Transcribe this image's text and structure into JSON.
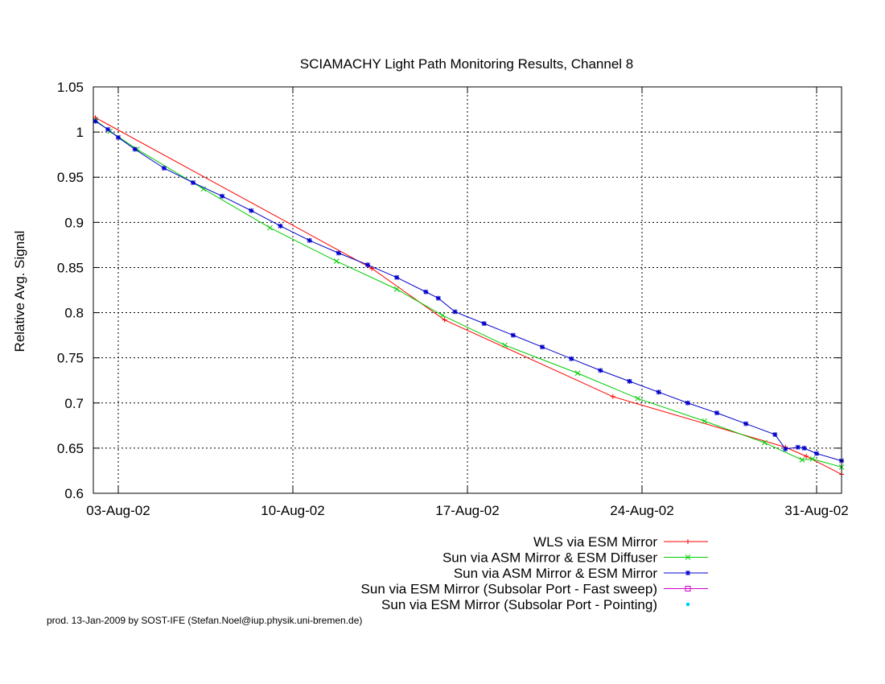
{
  "chart_data": {
    "type": "line",
    "title": "SCIAMACHY Light Path Monitoring Results, Channel 8",
    "ylabel": "Relative Avg. Signal",
    "xlabel": "",
    "x_unit": "date (2002)",
    "xlim": [
      "2002-08-02T00:00",
      "2002-09-01T00:00"
    ],
    "ylim": [
      0.6,
      1.05
    ],
    "yticks": [
      0.6,
      0.65,
      0.7,
      0.75,
      0.8,
      0.85,
      0.9,
      0.95,
      1,
      1.05
    ],
    "ytick_labels": [
      "0.6",
      "0.65",
      "0.7",
      "0.75",
      "0.8",
      "0.85",
      "0.9",
      "0.95",
      "1",
      "1.05"
    ],
    "xticks": [
      "2002-08-03",
      "2002-08-10",
      "2002-08-17",
      "2002-08-24",
      "2002-08-31"
    ],
    "xtick_labels": [
      "03-Aug-02",
      "10-Aug-02",
      "17-Aug-02",
      "24-Aug-02",
      "31-Aug-02"
    ],
    "grid": true,
    "legend_position": "bottom-right, below plot",
    "series": [
      {
        "name": "WLS via ESM Mirror",
        "color": "#ff0000",
        "marker": "plus",
        "x": [
          "2002-08-02T02:00",
          "2002-08-13T04:00",
          "2002-08-16T02:00",
          "2002-08-22T20:00",
          "2002-08-29T18:00",
          "2002-08-30T14:00",
          "2002-09-01T00:00"
        ],
        "y": [
          1.016,
          0.849,
          0.792,
          0.707,
          0.651,
          0.641,
          0.621
        ]
      },
      {
        "name": "Sun via ASM Mirror & ESM Diffuser",
        "color": "#00cc00",
        "marker": "cross",
        "x": [
          "2002-08-02T02:00",
          "2002-08-02T16:00",
          "2002-08-03T18:00",
          "2002-08-06T10:00",
          "2002-08-09T02:00",
          "2002-08-11T18:00",
          "2002-08-14T04:00",
          "2002-08-16T00:00",
          "2002-08-18T12:00",
          "2002-08-21T10:00",
          "2002-08-23T20:00",
          "2002-08-26T12:00",
          "2002-08-28T22:00",
          "2002-08-30T10:00",
          "2002-08-30T20:00",
          "2002-09-01T00:00"
        ],
        "y": [
          1.013,
          1.001,
          0.981,
          0.937,
          0.894,
          0.857,
          0.826,
          0.797,
          0.764,
          0.733,
          0.705,
          0.68,
          0.656,
          0.637,
          0.638,
          0.629
        ]
      },
      {
        "name": "Sun via ASM Mirror & ESM Mirror",
        "color": "#0000cc",
        "marker": "star",
        "x": [
          "2002-08-02T02:00",
          "2002-08-02T14:00",
          "2002-08-03T00:00",
          "2002-08-03T16:00",
          "2002-08-04T20:00",
          "2002-08-06T00:00",
          "2002-08-07T04:00",
          "2002-08-08T08:00",
          "2002-08-09T12:00",
          "2002-08-10T16:00",
          "2002-08-11T20:00",
          "2002-08-13T00:00",
          "2002-08-14T04:00",
          "2002-08-15T08:00",
          "2002-08-15T20:00",
          "2002-08-16T12:00",
          "2002-08-17T16:00",
          "2002-08-18T20:00",
          "2002-08-20T00:00",
          "2002-08-21T04:00",
          "2002-08-22T08:00",
          "2002-08-23T12:00",
          "2002-08-24T16:00",
          "2002-08-25T20:00",
          "2002-08-27T00:00",
          "2002-08-28T04:00",
          "2002-08-29T08:00",
          "2002-08-29T18:00",
          "2002-08-30T06:00",
          "2002-08-30T12:00",
          "2002-08-31T00:00",
          "2002-09-01T00:00"
        ],
        "y": [
          1.012,
          1.003,
          0.994,
          0.981,
          0.96,
          0.944,
          0.929,
          0.913,
          0.896,
          0.88,
          0.866,
          0.853,
          0.839,
          0.823,
          0.816,
          0.801,
          0.788,
          0.775,
          0.762,
          0.749,
          0.736,
          0.724,
          0.712,
          0.7,
          0.689,
          0.677,
          0.665,
          0.649,
          0.651,
          0.65,
          0.644,
          0.636
        ]
      },
      {
        "name": "Sun via ESM Mirror (Subsolar Port - Fast sweep)",
        "color": "#cc00cc",
        "marker": "square",
        "x": [],
        "y": []
      },
      {
        "name": "Sun via ESM Mirror (Subsolar Port - Pointing)",
        "color": "#00ccff",
        "marker": "dot",
        "x": [],
        "y": []
      }
    ]
  },
  "footer": {
    "text": "prod. 13-Jan-2009 by SOST-IFE (Stefan.Noel@iup.physik.uni-bremen.de)"
  }
}
